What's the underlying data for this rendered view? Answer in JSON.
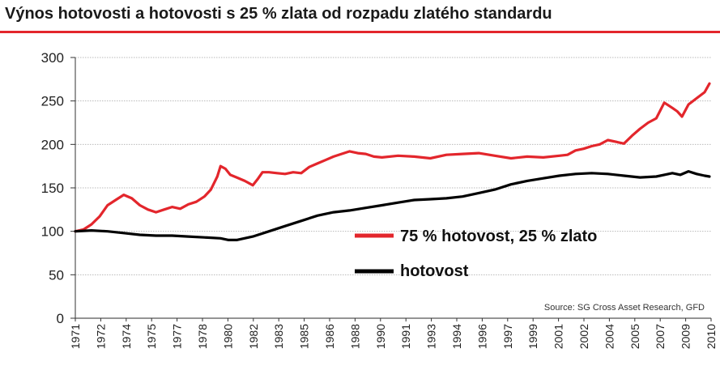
{
  "chart_data": {
    "type": "line",
    "title": "Výnos hotovosti a hotovosti s 25 % zlata od rozpadu zlatého standardu",
    "source": "Source: SG Cross Asset Research, GFD",
    "ylim": [
      0,
      300
    ],
    "yticks": [
      0,
      50,
      100,
      150,
      200,
      250,
      300
    ],
    "xlim": [
      1971,
      2010.4
    ],
    "xticks": [
      "1971",
      "1972",
      "1974",
      "1975",
      "1977",
      "1978",
      "1980",
      "1982",
      "1983",
      "1985",
      "1986",
      "1988",
      "1990",
      "1991",
      "1993",
      "1994",
      "1996",
      "1997",
      "1999",
      "2001",
      "2002",
      "2004",
      "2005",
      "2007",
      "2009",
      "2010"
    ],
    "grid": true,
    "legend_position": "center-right",
    "colors": {
      "mixed": "#e3262c",
      "cash": "#000000",
      "accent": "#e3262c"
    },
    "series": [
      {
        "name": "75 % hotovost, 25 % zlato",
        "color": "#e3262c",
        "x": [
          1971,
          1971.5,
          1972,
          1972.5,
          1973,
          1973.5,
          1974,
          1974.5,
          1975,
          1975.5,
          1976,
          1976.5,
          1977,
          1977.5,
          1978,
          1978.5,
          1979,
          1979.4,
          1979.8,
          1980,
          1980.3,
          1980.6,
          1981,
          1981.5,
          1982,
          1982.3,
          1982.6,
          1983,
          1983.5,
          1984,
          1984.5,
          1985,
          1985.5,
          1986,
          1986.5,
          1987,
          1987.5,
          1988,
          1988.5,
          1989,
          1989.5,
          1990,
          1991,
          1992,
          1993,
          1994,
          1995,
          1996,
          1997,
          1998,
          1999,
          2000,
          2001,
          2001.5,
          2002,
          2002.5,
          2003,
          2003.5,
          2004,
          2004.5,
          2005,
          2005.5,
          2006,
          2006.5,
          2007,
          2007.5,
          2008,
          2008.3,
          2008.6,
          2009,
          2009.5,
          2010,
          2010.3
        ],
        "values": [
          100,
          102,
          108,
          117,
          130,
          136,
          142,
          138,
          130,
          125,
          122,
          125,
          128,
          126,
          131,
          134,
          140,
          148,
          163,
          175,
          172,
          165,
          162,
          158,
          153,
          160,
          168,
          168,
          167,
          166,
          168,
          167,
          174,
          178,
          182,
          186,
          189,
          192,
          190,
          189,
          186,
          185,
          187,
          186,
          184,
          188,
          189,
          190,
          187,
          184,
          186,
          185,
          187,
          188,
          193,
          195,
          198,
          200,
          205,
          203,
          201,
          210,
          218,
          225,
          230,
          248,
          242,
          238,
          232,
          246,
          253,
          260,
          270
        ]
      },
      {
        "name": "hotovost",
        "color": "#000000",
        "x": [
          1971,
          1972,
          1973,
          1974,
          1975,
          1976,
          1977,
          1978,
          1979,
          1980,
          1980.5,
          1981,
          1982,
          1983,
          1984,
          1985,
          1986,
          1987,
          1988,
          1989,
          1990,
          1991,
          1992,
          1993,
          1994,
          1995,
          1996,
          1997,
          1998,
          1999,
          2000,
          2001,
          2002,
          2003,
          2004,
          2005,
          2006,
          2007,
          2007.5,
          2008,
          2008.5,
          2009,
          2009.5,
          2010,
          2010.3
        ],
        "values": [
          100,
          101,
          100,
          98,
          96,
          95,
          95,
          94,
          93,
          92,
          90,
          90,
          94,
          100,
          106,
          112,
          118,
          122,
          124,
          127,
          130,
          133,
          136,
          137,
          138,
          140,
          144,
          148,
          154,
          158,
          161,
          164,
          166,
          167,
          166,
          164,
          162,
          163,
          165,
          167,
          165,
          169,
          166,
          164,
          163
        ]
      }
    ]
  }
}
